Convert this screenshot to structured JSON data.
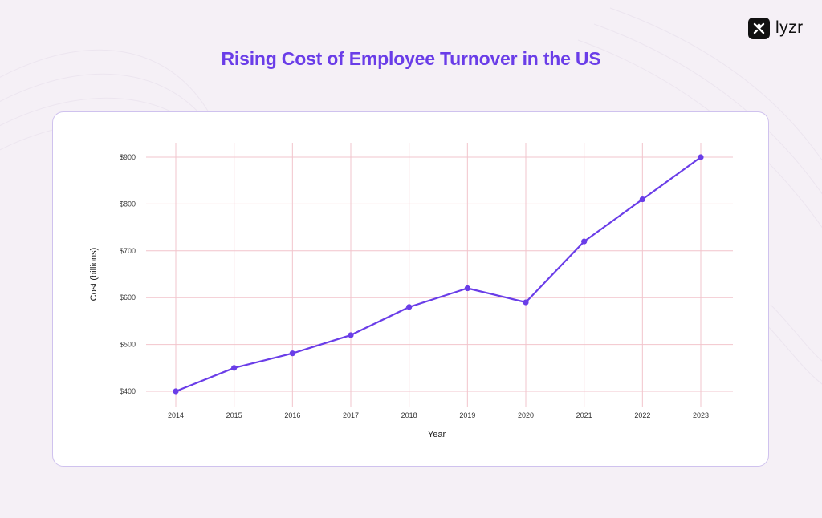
{
  "brand": {
    "name": "lyzr"
  },
  "colors": {
    "accent": "#6a3de8",
    "line": "#6a3de8",
    "grid": "#f2c4cc",
    "background": "#f5f0f6",
    "card": "#ffffff"
  },
  "chart_data": {
    "type": "line",
    "title": "Rising Cost of Employee Turnover in the US",
    "xlabel": "Year",
    "ylabel": "Cost (billions)",
    "x": [
      "2014",
      "2015",
      "2016",
      "2017",
      "2018",
      "2019",
      "2020",
      "2021",
      "2022",
      "2023"
    ],
    "series": [
      {
        "name": "Cost of Employee Turnover",
        "values": [
          400,
          450,
          481,
          520,
          580,
          620,
          590,
          720,
          810,
          900
        ]
      }
    ],
    "yticks": [
      400,
      500,
      600,
      700,
      800,
      900
    ],
    "ytick_labels": [
      "$400",
      "$500",
      "$600",
      "$700",
      "$800",
      "$900"
    ],
    "ylim": [
      400,
      900
    ],
    "grid": true,
    "legend": "none"
  }
}
